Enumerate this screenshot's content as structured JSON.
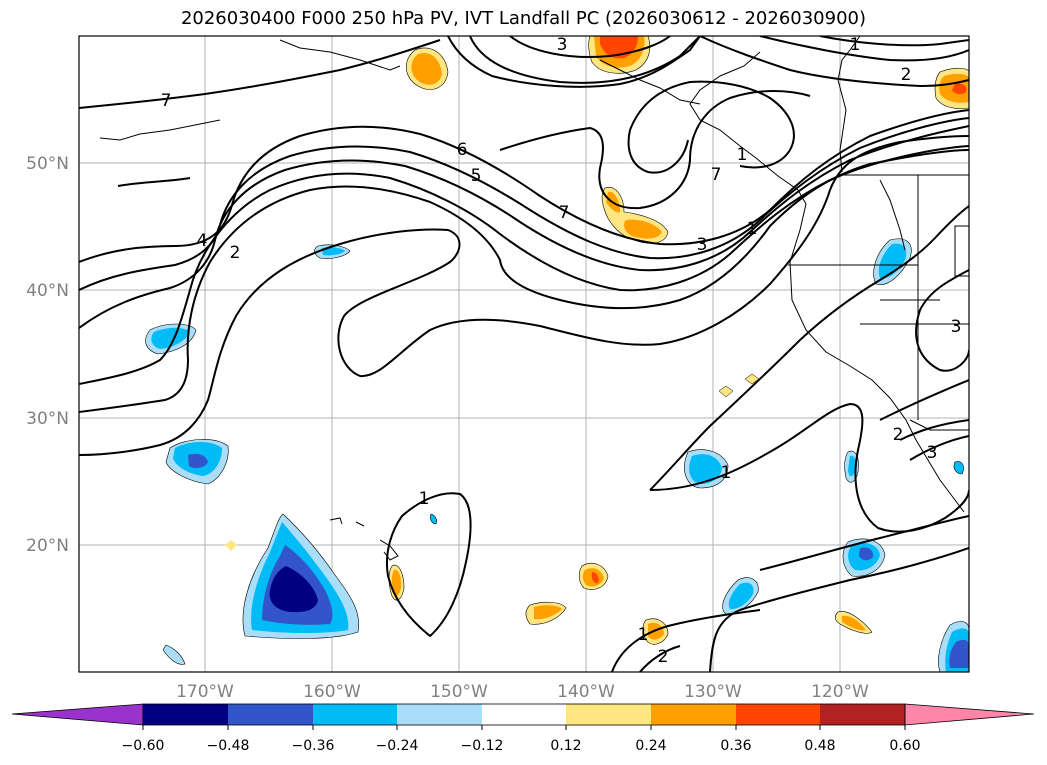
{
  "title": "2026030400 F000 250 hPa PV, IVT Landfall PC (2026030612 - 2026030900)",
  "lat_labels": [
    "50°N",
    "40°N",
    "30°N",
    "20°N"
  ],
  "lon_labels": [
    "170°W",
    "160°W",
    "150°W",
    "140°W",
    "130°W",
    "120°W"
  ],
  "colorbar": {
    "ticks": [
      "−0.60",
      "−0.48",
      "−0.36",
      "−0.24",
      "−0.12",
      "0.12",
      "0.24",
      "0.36",
      "0.48",
      "0.60"
    ],
    "colors": [
      "#9933cc",
      "#000080",
      "#3355cc",
      "#00bbf5",
      "#aaddf8",
      "#ffffff",
      "#ffe680",
      "#ff9f00",
      "#ff4500",
      "#b22222",
      "#ff85a9"
    ]
  },
  "contour_labels": [
    "3",
    "1",
    "2",
    "7",
    "6",
    "5",
    "7",
    "1",
    "4",
    "2",
    "3",
    "1",
    "7",
    "2",
    "3",
    "1",
    "1",
    "1",
    "2",
    "3"
  ],
  "colors": {
    "positive": "#ff9f00",
    "negative": "#00bbf5"
  }
}
